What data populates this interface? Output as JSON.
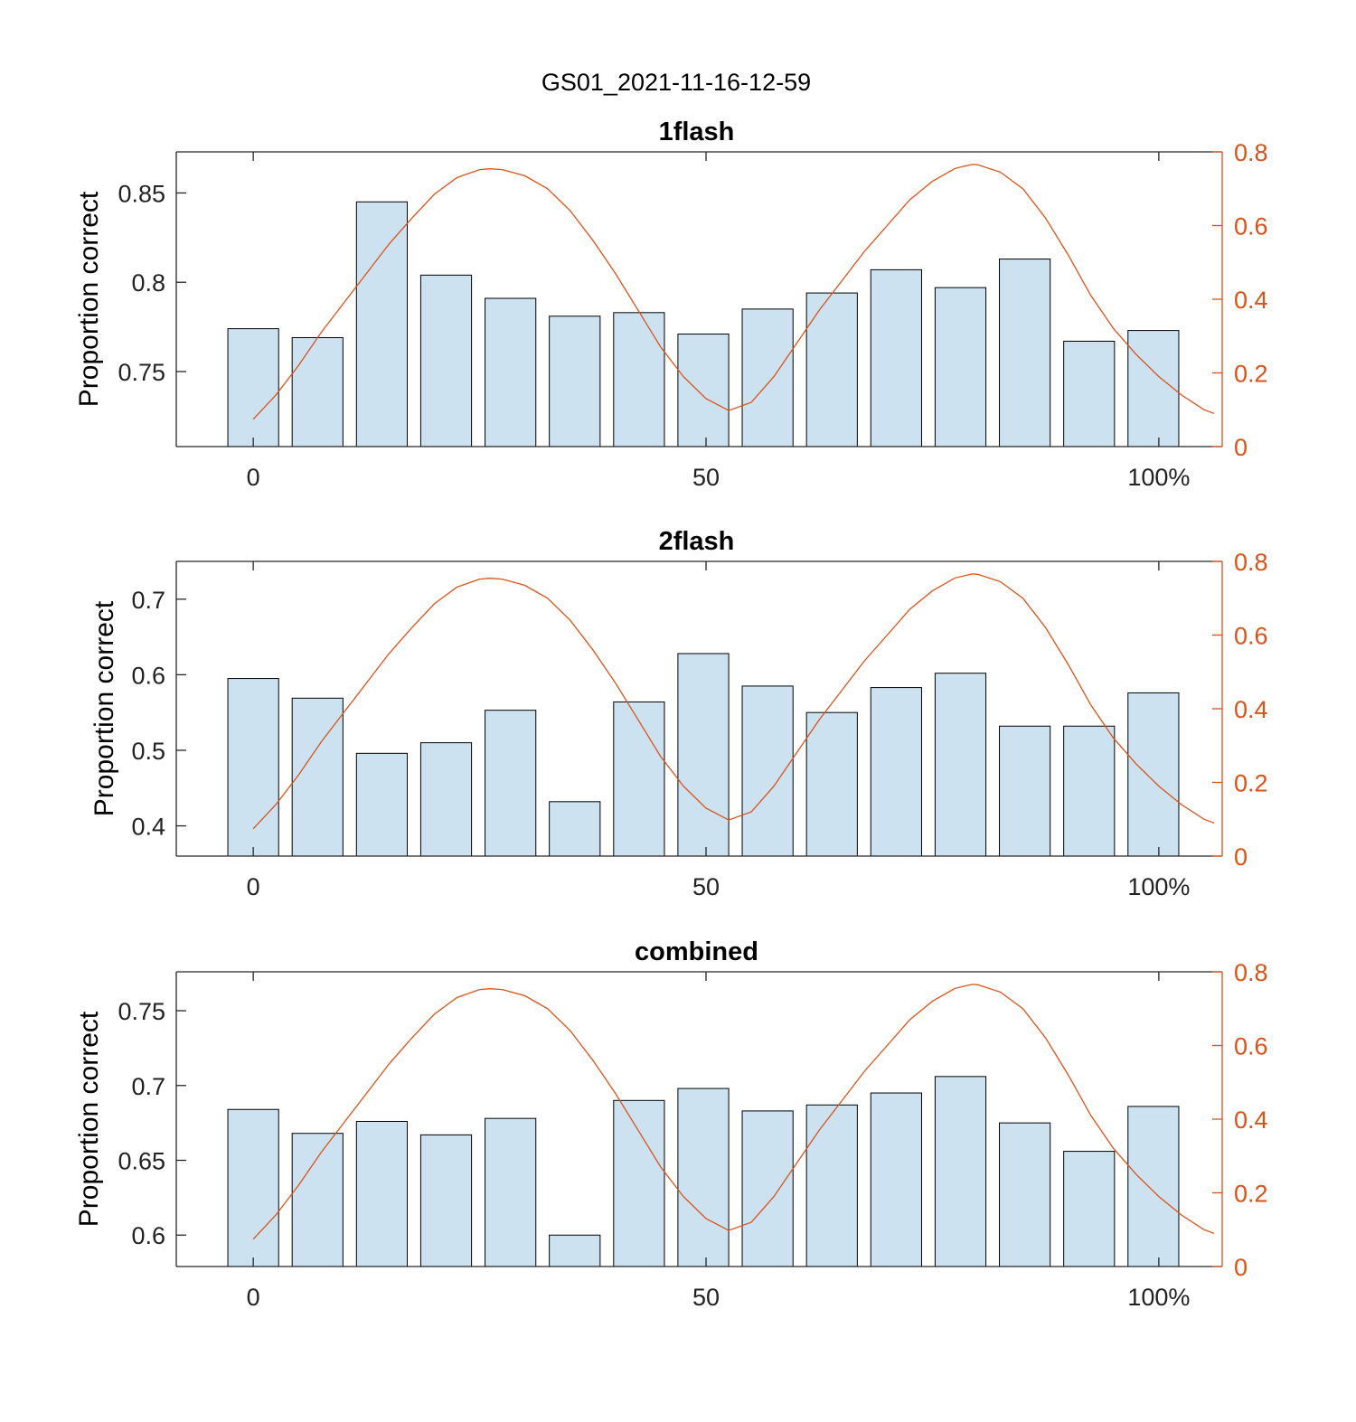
{
  "figure_title": "GS01_2021-11-16-12-59",
  "colors": {
    "bar_fill": "#cce2f1",
    "bar_edge": "#000000",
    "line": "#d95319",
    "right_axis": "#d95319",
    "axis": "#262626"
  },
  "chart_data": [
    {
      "type": "bar",
      "title": "1flash",
      "ylabel": "Proportion correct",
      "xlabel": "",
      "x": [
        0,
        7.1,
        14.2,
        21.3,
        28.4,
        35.5,
        42.6,
        49.7,
        56.8,
        63.9,
        71,
        78.1,
        85.2,
        92.3,
        99.4
      ],
      "values": [
        0.774,
        0.769,
        0.845,
        0.804,
        0.791,
        0.781,
        0.783,
        0.771,
        0.785,
        0.794,
        0.807,
        0.797,
        0.813,
        0.767,
        0.773
      ],
      "ylim": [
        0.708,
        0.873
      ],
      "yticks": [
        "0.75",
        "0.8",
        "0.85"
      ],
      "ytick_values": [
        0.75,
        0.8,
        0.85
      ],
      "xlim": [
        -8.5,
        107
      ],
      "xticks": [
        "0",
        "50",
        "100%"
      ],
      "xtick_values": [
        0,
        50,
        100
      ],
      "right_axis": {
        "ylim": [
          0,
          0.8
        ],
        "yticks": [
          "0",
          "0.2",
          "0.4",
          "0.6",
          "0.8"
        ],
        "ytick_values": [
          0,
          0.2,
          0.4,
          0.6,
          0.8
        ],
        "curve": {
          "type": "line",
          "x": [
            0,
            2.5,
            5,
            7.5,
            10,
            12.5,
            15,
            17.5,
            20,
            22.5,
            25,
            26.1,
            27.5,
            30,
            32.5,
            35,
            37.5,
            40,
            42.5,
            45,
            47.5,
            50,
            52.5,
            55,
            57.5,
            60,
            62.5,
            65,
            67.5,
            70,
            72.5,
            75,
            77.5,
            79.4,
            80,
            82.5,
            85,
            87.5,
            90,
            92.5,
            95,
            97.5,
            100,
            102.5,
            105,
            106.1
          ],
          "y": [
            0.074,
            0.14,
            0.22,
            0.31,
            0.39,
            0.47,
            0.55,
            0.62,
            0.685,
            0.73,
            0.752,
            0.754,
            0.752,
            0.735,
            0.7,
            0.64,
            0.56,
            0.47,
            0.37,
            0.27,
            0.19,
            0.13,
            0.098,
            0.12,
            0.19,
            0.28,
            0.37,
            0.45,
            0.53,
            0.6,
            0.67,
            0.72,
            0.755,
            0.766,
            0.765,
            0.745,
            0.7,
            0.62,
            0.52,
            0.41,
            0.32,
            0.25,
            0.19,
            0.14,
            0.1,
            0.09
          ]
        }
      }
    },
    {
      "type": "bar",
      "title": "2flash",
      "ylabel": "Proportion correct",
      "xlabel": "",
      "x": [
        0,
        7.1,
        14.2,
        21.3,
        28.4,
        35.5,
        42.6,
        49.7,
        56.8,
        63.9,
        71,
        78.1,
        85.2,
        92.3,
        99.4
      ],
      "values": [
        0.595,
        0.569,
        0.496,
        0.51,
        0.553,
        0.432,
        0.564,
        0.628,
        0.585,
        0.55,
        0.583,
        0.602,
        0.532,
        0.532,
        0.576
      ],
      "ylim": [
        0.36,
        0.75
      ],
      "yticks": [
        "0.4",
        "0.5",
        "0.6",
        "0.7"
      ],
      "ytick_values": [
        0.4,
        0.5,
        0.6,
        0.7
      ],
      "xlim": [
        -8.5,
        107
      ],
      "xticks": [
        "0",
        "50",
        "100%"
      ],
      "xtick_values": [
        0,
        50,
        100
      ],
      "right_axis": {
        "ylim": [
          0,
          0.8
        ],
        "yticks": [
          "0",
          "0.2",
          "0.4",
          "0.6",
          "0.8"
        ],
        "ytick_values": [
          0,
          0.2,
          0.4,
          0.6,
          0.8
        ],
        "curve": {
          "type": "line",
          "x": [
            0,
            2.5,
            5,
            7.5,
            10,
            12.5,
            15,
            17.5,
            20,
            22.5,
            25,
            26.1,
            27.5,
            30,
            32.5,
            35,
            37.5,
            40,
            42.5,
            45,
            47.5,
            50,
            52.5,
            55,
            57.5,
            60,
            62.5,
            65,
            67.5,
            70,
            72.5,
            75,
            77.5,
            79.4,
            80,
            82.5,
            85,
            87.5,
            90,
            92.5,
            95,
            97.5,
            100,
            102.5,
            105,
            106.1
          ],
          "y": [
            0.074,
            0.14,
            0.22,
            0.31,
            0.39,
            0.47,
            0.55,
            0.62,
            0.685,
            0.73,
            0.752,
            0.754,
            0.752,
            0.735,
            0.7,
            0.64,
            0.56,
            0.47,
            0.37,
            0.27,
            0.19,
            0.13,
            0.098,
            0.12,
            0.19,
            0.28,
            0.37,
            0.45,
            0.53,
            0.6,
            0.67,
            0.72,
            0.755,
            0.766,
            0.765,
            0.745,
            0.7,
            0.62,
            0.52,
            0.41,
            0.32,
            0.25,
            0.19,
            0.14,
            0.1,
            0.09
          ]
        }
      }
    },
    {
      "type": "bar",
      "title": "combined",
      "ylabel": "Proportion correct",
      "xlabel": "",
      "x": [
        0,
        7.1,
        14.2,
        21.3,
        28.4,
        35.5,
        42.6,
        49.7,
        56.8,
        63.9,
        71,
        78.1,
        85.2,
        92.3,
        99.4
      ],
      "values": [
        0.684,
        0.668,
        0.676,
        0.667,
        0.678,
        0.6,
        0.69,
        0.698,
        0.683,
        0.687,
        0.695,
        0.706,
        0.675,
        0.656,
        0.686
      ],
      "ylim": [
        0.579,
        0.776
      ],
      "yticks": [
        "0.6",
        "0.65",
        "0.7",
        "0.75"
      ],
      "ytick_values": [
        0.6,
        0.65,
        0.7,
        0.75
      ],
      "xlim": [
        -8.5,
        107
      ],
      "xticks": [
        "0",
        "50",
        "100%"
      ],
      "xtick_values": [
        0,
        50,
        100
      ],
      "right_axis": {
        "ylim": [
          0,
          0.8
        ],
        "yticks": [
          "0",
          "0.2",
          "0.4",
          "0.6",
          "0.8"
        ],
        "ytick_values": [
          0,
          0.2,
          0.4,
          0.6,
          0.8
        ],
        "curve": {
          "type": "line",
          "x": [
            0,
            2.5,
            5,
            7.5,
            10,
            12.5,
            15,
            17.5,
            20,
            22.5,
            25,
            26.1,
            27.5,
            30,
            32.5,
            35,
            37.5,
            40,
            42.5,
            45,
            47.5,
            50,
            52.5,
            55,
            57.5,
            60,
            62.5,
            65,
            67.5,
            70,
            72.5,
            75,
            77.5,
            79.4,
            80,
            82.5,
            85,
            87.5,
            90,
            92.5,
            95,
            97.5,
            100,
            102.5,
            105,
            106.1
          ],
          "y": [
            0.074,
            0.14,
            0.22,
            0.31,
            0.39,
            0.47,
            0.55,
            0.62,
            0.685,
            0.73,
            0.752,
            0.754,
            0.752,
            0.735,
            0.7,
            0.64,
            0.56,
            0.47,
            0.37,
            0.27,
            0.19,
            0.13,
            0.098,
            0.12,
            0.19,
            0.28,
            0.37,
            0.45,
            0.53,
            0.6,
            0.67,
            0.72,
            0.755,
            0.766,
            0.765,
            0.745,
            0.7,
            0.62,
            0.52,
            0.41,
            0.32,
            0.25,
            0.19,
            0.14,
            0.1,
            0.09
          ]
        }
      }
    }
  ]
}
